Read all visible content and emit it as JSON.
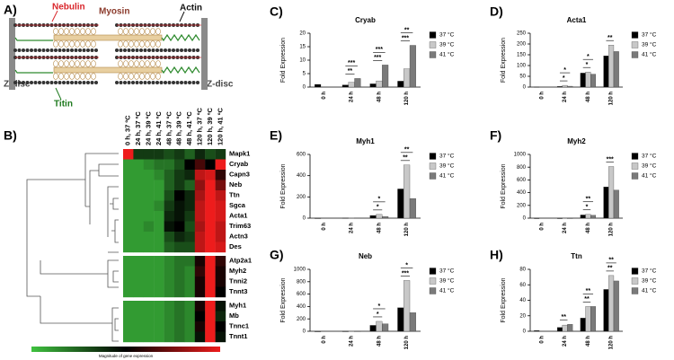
{
  "diagram": {
    "panel": "A)",
    "nebulin": "Nebulin",
    "myosin": "Myosin",
    "actin": "Actin",
    "titin": "Titin",
    "zdisc_left": "Z-disc",
    "zdisc_right": "Z-disc"
  },
  "chart_data": [
    {
      "type": "heatmap",
      "panel": "B)",
      "columns": [
        "0 h, 37 ºC",
        "24 h, 37 ºC",
        "24 h, 39 ºC",
        "24 h, 41 ºC",
        "48 h, 37 ºC",
        "48 h, 39 ºC",
        "48 h, 41 ºC",
        "120 h, 37 ºC",
        "120 h, 39 ºC",
        "120 h, 41 ºC"
      ],
      "row_groups": [
        [
          "Mapk1",
          "Cryab",
          "Capn3",
          "Neb",
          "Ttn",
          "Sgca",
          "Acta1",
          "Trim63",
          "Actn3",
          "Des"
        ],
        [
          "Atp2a1",
          "Myh2",
          "Tnni2",
          "Tnnt3"
        ],
        [
          "Myh1",
          "Mb",
          "Tnnc1",
          "Tnnt1"
        ]
      ],
      "values": [
        [
          [
            1,
            -0.3,
            -0.3,
            -0.3,
            -0.4,
            -0.3,
            -0.5,
            -0.2,
            -0.4,
            -0.3
          ],
          [
            -0.8,
            -0.8,
            -0.7,
            -0.6,
            -0.6,
            -0.4,
            0,
            0.3,
            0,
            1
          ],
          [
            -0.8,
            -0.8,
            -0.8,
            -0.7,
            -0.5,
            -0.3,
            -0.2,
            0.8,
            0.9,
            0.2
          ],
          [
            -0.8,
            -0.8,
            -0.8,
            -0.8,
            -0.5,
            -0.3,
            -0.5,
            0.6,
            1,
            0.5
          ],
          [
            -0.8,
            -0.8,
            -0.8,
            -0.8,
            -0.4,
            0,
            -0.2,
            0.7,
            1,
            0.8
          ],
          [
            -0.8,
            -0.8,
            -0.8,
            -0.7,
            -0.3,
            -0.1,
            -0.2,
            0.8,
            1,
            0.9
          ],
          [
            -0.8,
            -0.8,
            -0.8,
            -0.8,
            -0.2,
            -0.1,
            -0.3,
            0.8,
            1,
            0.9
          ],
          [
            -0.8,
            -0.8,
            -0.7,
            -0.8,
            -0.1,
            0,
            -0.4,
            0.7,
            1,
            0.8
          ],
          [
            -0.8,
            -0.8,
            -0.8,
            -0.8,
            -0.4,
            -0.2,
            -0.3,
            0.8,
            1,
            0.8
          ],
          [
            -0.8,
            -0.8,
            -0.8,
            -0.8,
            -0.5,
            -0.4,
            -0.4,
            0.8,
            1,
            0.9
          ]
        ],
        [
          [
            -0.8,
            -0.8,
            -0.8,
            -0.8,
            -0.7,
            -0.6,
            -0.6,
            0.1,
            1,
            0.2
          ],
          [
            -0.8,
            -0.8,
            -0.8,
            -0.8,
            -0.7,
            -0.6,
            -0.7,
            0.2,
            1,
            0.1
          ],
          [
            -0.8,
            -0.8,
            -0.8,
            -0.8,
            -0.7,
            -0.6,
            -0.7,
            0.1,
            1,
            0.1
          ],
          [
            -0.8,
            -0.8,
            -0.8,
            -0.8,
            -0.7,
            -0.6,
            -0.7,
            0.1,
            1,
            0
          ]
        ],
        [
          [
            -0.8,
            -0.8,
            -0.8,
            -0.8,
            -0.7,
            -0.6,
            -0.7,
            0.1,
            1,
            -0.1
          ],
          [
            -0.8,
            -0.8,
            -0.8,
            -0.8,
            -0.7,
            -0.6,
            -0.7,
            0,
            1,
            -0.2
          ],
          [
            -0.8,
            -0.8,
            -0.8,
            -0.8,
            -0.7,
            -0.6,
            -0.7,
            0.1,
            1,
            0
          ],
          [
            -0.8,
            -0.8,
            -0.8,
            -0.8,
            -0.7,
            -0.6,
            -0.7,
            -0.1,
            1,
            -0.1
          ]
        ]
      ],
      "colors": [
        "#3fc23f",
        "#000000",
        "#ee1c1c"
      ],
      "zlim": [
        -1,
        1
      ],
      "legend_title": "Magnitude of gene expression"
    },
    {
      "type": "bar",
      "panel": "C)",
      "title": "Cryab",
      "ylabel": "Fold Expression",
      "categories": [
        "0 h",
        "24 h",
        "48 h",
        "120 h"
      ],
      "series": [
        {
          "name": "37 °C",
          "color": "#000000",
          "values": [
            1,
            0.8,
            1.2,
            2.2
          ]
        },
        {
          "name": "39 °C",
          "color": "#c8c8c8",
          "values": [
            null,
            1.8,
            2.3,
            6.8
          ]
        },
        {
          "name": "41 °C",
          "color": "#7a7a7a",
          "values": [
            null,
            3.2,
            8.2,
            15.5
          ]
        }
      ],
      "annotations": [
        [],
        [
          "**",
          "***"
        ],
        [
          "***",
          "***"
        ],
        [
          "***",
          "**"
        ]
      ],
      "ylim": [
        0,
        20
      ],
      "yticks": [
        0,
        5,
        10,
        15,
        20
      ],
      "legend": "right"
    },
    {
      "type": "bar",
      "panel": "D)",
      "title": "Acta1",
      "ylabel": "Fold Expression",
      "categories": [
        "0 h",
        "24 h",
        "48 h",
        "120 h"
      ],
      "series": [
        {
          "name": "37 °C",
          "color": "#000000",
          "values": [
            1,
            3,
            65,
            145
          ]
        },
        {
          "name": "39 °C",
          "color": "#c8c8c8",
          "values": [
            null,
            8,
            70,
            195
          ]
        },
        {
          "name": "41 °C",
          "color": "#7a7a7a",
          "values": [
            null,
            4,
            60,
            165
          ]
        }
      ],
      "annotations": [
        [],
        [
          "*",
          "*"
        ],
        [
          "*",
          "*"
        ],
        [
          "**"
        ]
      ],
      "ylim": [
        0,
        250
      ],
      "yticks": [
        0,
        50,
        100,
        150,
        200,
        250
      ],
      "legend": "right"
    },
    {
      "type": "bar",
      "panel": "E)",
      "title": "Myh1",
      "ylabel": "Fold Expression",
      "categories": [
        "0 h",
        "24 h",
        "48 h",
        "120 h"
      ],
      "series": [
        {
          "name": "37 °C",
          "color": "#000000",
          "values": [
            1,
            2,
            25,
            275
          ]
        },
        {
          "name": "39 °C",
          "color": "#c8c8c8",
          "values": [
            null,
            3,
            35,
            500
          ]
        },
        {
          "name": "41 °C",
          "color": "#7a7a7a",
          "values": [
            null,
            2,
            15,
            185
          ]
        }
      ],
      "annotations": [
        [],
        [],
        [
          "*",
          "*"
        ],
        [
          "**",
          "**"
        ]
      ],
      "ylim": [
        0,
        600
      ],
      "yticks": [
        0,
        200,
        400,
        600
      ],
      "legend": "right"
    },
    {
      "type": "bar",
      "panel": "F)",
      "title": "Myh2",
      "ylabel": "Fold Expression",
      "categories": [
        "0 h",
        "24 h",
        "48 h",
        "120 h"
      ],
      "series": [
        {
          "name": "37 °C",
          "color": "#000000",
          "values": [
            1,
            1,
            50,
            490
          ]
        },
        {
          "name": "39 °C",
          "color": "#c8c8c8",
          "values": [
            null,
            2,
            60,
            810
          ]
        },
        {
          "name": "41 °C",
          "color": "#7a7a7a",
          "values": [
            null,
            1,
            45,
            440
          ]
        }
      ],
      "annotations": [
        [],
        [],
        [
          "*",
          "**"
        ],
        [
          "***"
        ]
      ],
      "ylim": [
        0,
        1000
      ],
      "yticks": [
        0,
        200,
        400,
        600,
        800,
        1000
      ],
      "legend": "right"
    },
    {
      "type": "bar",
      "panel": "G)",
      "title": "Neb",
      "ylabel": "Fold Expression",
      "categories": [
        "0 h",
        "24 h",
        "48 h",
        "120 h"
      ],
      "series": [
        {
          "name": "37 °C",
          "color": "#000000",
          "values": [
            1,
            2,
            95,
            380
          ]
        },
        {
          "name": "39 °C",
          "color": "#c8c8c8",
          "values": [
            null,
            3,
            160,
            820
          ]
        },
        {
          "name": "41 °C",
          "color": "#7a7a7a",
          "values": [
            null,
            2,
            120,
            300
          ]
        }
      ],
      "annotations": [
        [],
        [],
        [
          "*",
          "*"
        ],
        [
          "***",
          "*"
        ]
      ],
      "ylim": [
        0,
        1000
      ],
      "yticks": [
        0,
        200,
        400,
        600,
        800,
        1000
      ],
      "legend": "right"
    },
    {
      "type": "bar",
      "panel": "H)",
      "title": "Ttn",
      "ylabel": "Fold Expression",
      "categories": [
        "0 h",
        "24 h",
        "48 h",
        "120 h"
      ],
      "series": [
        {
          "name": "37 °C",
          "color": "#000000",
          "values": [
            1,
            5,
            17,
            54
          ]
        },
        {
          "name": "39 °C",
          "color": "#c8c8c8",
          "values": [
            null,
            8,
            32,
            72
          ]
        },
        {
          "name": "41 °C",
          "color": "#7a7a7a",
          "values": [
            null,
            9,
            32,
            65
          ]
        }
      ],
      "annotations": [
        [],
        [
          "**"
        ],
        [
          "**",
          "**"
        ],
        [
          "**",
          "**"
        ]
      ],
      "ylim": [
        0,
        80
      ],
      "yticks": [
        0,
        20,
        40,
        60,
        80
      ],
      "legend": "right"
    }
  ]
}
